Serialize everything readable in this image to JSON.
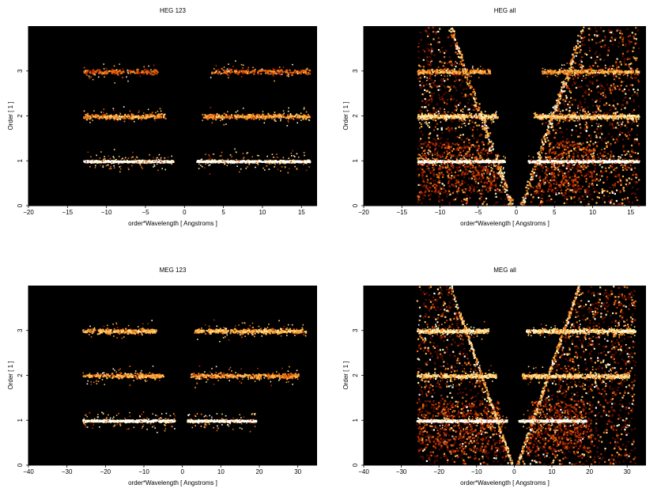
{
  "chart_data": [
    {
      "type": "heatmap",
      "title": "HEG 123",
      "xlabel": "order*Wavelength [ Angstroms ]",
      "ylabel": "Order [ 1 ]",
      "xlim": [
        -20,
        17
      ],
      "ylim": [
        0,
        4
      ],
      "xticks": [
        -20,
        -15,
        -10,
        -5,
        0,
        5,
        10,
        15
      ],
      "yticks": [
        0,
        1,
        2,
        3
      ],
      "colormap": [
        "#000000",
        "#5a0a00",
        "#b02a00",
        "#e86a10",
        "#ffb040",
        "#ffe8a0",
        "#ffffff"
      ],
      "bands": [
        {
          "order": 1,
          "x_ranges": [
            [
              -13,
              -1.5
            ],
            [
              1.5,
              16
            ]
          ],
          "intensity": 0.95
        },
        {
          "order": 2,
          "x_ranges": [
            [
              -13,
              -2.5
            ],
            [
              2.2,
              16
            ]
          ],
          "intensity": 0.55
        },
        {
          "order": 3,
          "x_ranges": [
            [
              -13,
              -3.5
            ],
            [
              3.2,
              16
            ]
          ],
          "intensity": 0.4
        }
      ]
    },
    {
      "type": "heatmap",
      "title": "HEG all",
      "xlabel": "order*Wavelength [ Angstroms ]",
      "ylabel": "Order [ 1 ]",
      "xlim": [
        -20,
        17
      ],
      "ylim": [
        0,
        4
      ],
      "xticks": [
        -20,
        -15,
        -10,
        -5,
        0,
        5,
        10,
        15
      ],
      "yticks": [
        0,
        1,
        2,
        3
      ],
      "colormap": [
        "#000000",
        "#5a0a00",
        "#b02a00",
        "#e86a10",
        "#ffb040",
        "#ffe8a0",
        "#ffffff"
      ],
      "bands": [
        {
          "order": 1,
          "x_ranges": [
            [
              -13,
              -1.5
            ],
            [
              1.5,
              16
            ]
          ],
          "intensity": 1.0
        },
        {
          "order": 2,
          "x_ranges": [
            [
              -13,
              -2.5
            ],
            [
              2.2,
              16
            ]
          ],
          "intensity": 0.7
        },
        {
          "order": 3,
          "x_ranges": [
            [
              -13,
              -3.5
            ],
            [
              3.2,
              16
            ]
          ],
          "intensity": 0.55
        }
      ],
      "background_x_range": [
        -13,
        16
      ]
    },
    {
      "type": "heatmap",
      "title": "MEG 123",
      "xlabel": "order*Wavelength [ Angstroms ]",
      "ylabel": "Order [ 1 ]",
      "xlim": [
        -40,
        35
      ],
      "ylim": [
        0,
        4
      ],
      "xticks": [
        -40,
        -30,
        -20,
        -10,
        0,
        10,
        20,
        30
      ],
      "yticks": [
        0,
        1,
        2,
        3
      ],
      "colormap": [
        "#000000",
        "#5a0a00",
        "#b02a00",
        "#e86a10",
        "#ffb040",
        "#ffe8a0",
        "#ffffff"
      ],
      "bands": [
        {
          "order": 1,
          "x_ranges": [
            [
              -26,
              -2
            ],
            [
              1,
              19
            ]
          ],
          "intensity": 0.95
        },
        {
          "order": 2,
          "x_ranges": [
            [
              -26,
              -5
            ],
            [
              2,
              30
            ]
          ],
          "intensity": 0.55
        },
        {
          "order": 3,
          "x_ranges": [
            [
              -26,
              -7
            ],
            [
              3,
              32
            ]
          ],
          "intensity": 0.6
        }
      ]
    },
    {
      "type": "heatmap",
      "title": "MEG all",
      "xlabel": "order*Wavelength [ Angstroms ]",
      "ylabel": "Order [ 1 ]",
      "xlim": [
        -40,
        35
      ],
      "ylim": [
        0,
        4
      ],
      "xticks": [
        -40,
        -30,
        -20,
        -10,
        0,
        10,
        20,
        30
      ],
      "yticks": [
        0,
        1,
        2,
        3
      ],
      "colormap": [
        "#000000",
        "#5a0a00",
        "#b02a00",
        "#e86a10",
        "#ffb040",
        "#ffe8a0",
        "#ffffff"
      ],
      "bands": [
        {
          "order": 1,
          "x_ranges": [
            [
              -26,
              -2
            ],
            [
              1,
              19
            ]
          ],
          "intensity": 1.0
        },
        {
          "order": 2,
          "x_ranges": [
            [
              -26,
              -5
            ],
            [
              2,
              30
            ]
          ],
          "intensity": 0.7
        },
        {
          "order": 3,
          "x_ranges": [
            [
              -26,
              -7
            ],
            [
              3,
              32
            ]
          ],
          "intensity": 0.75
        }
      ],
      "background_x_range": [
        -26,
        32
      ]
    }
  ]
}
